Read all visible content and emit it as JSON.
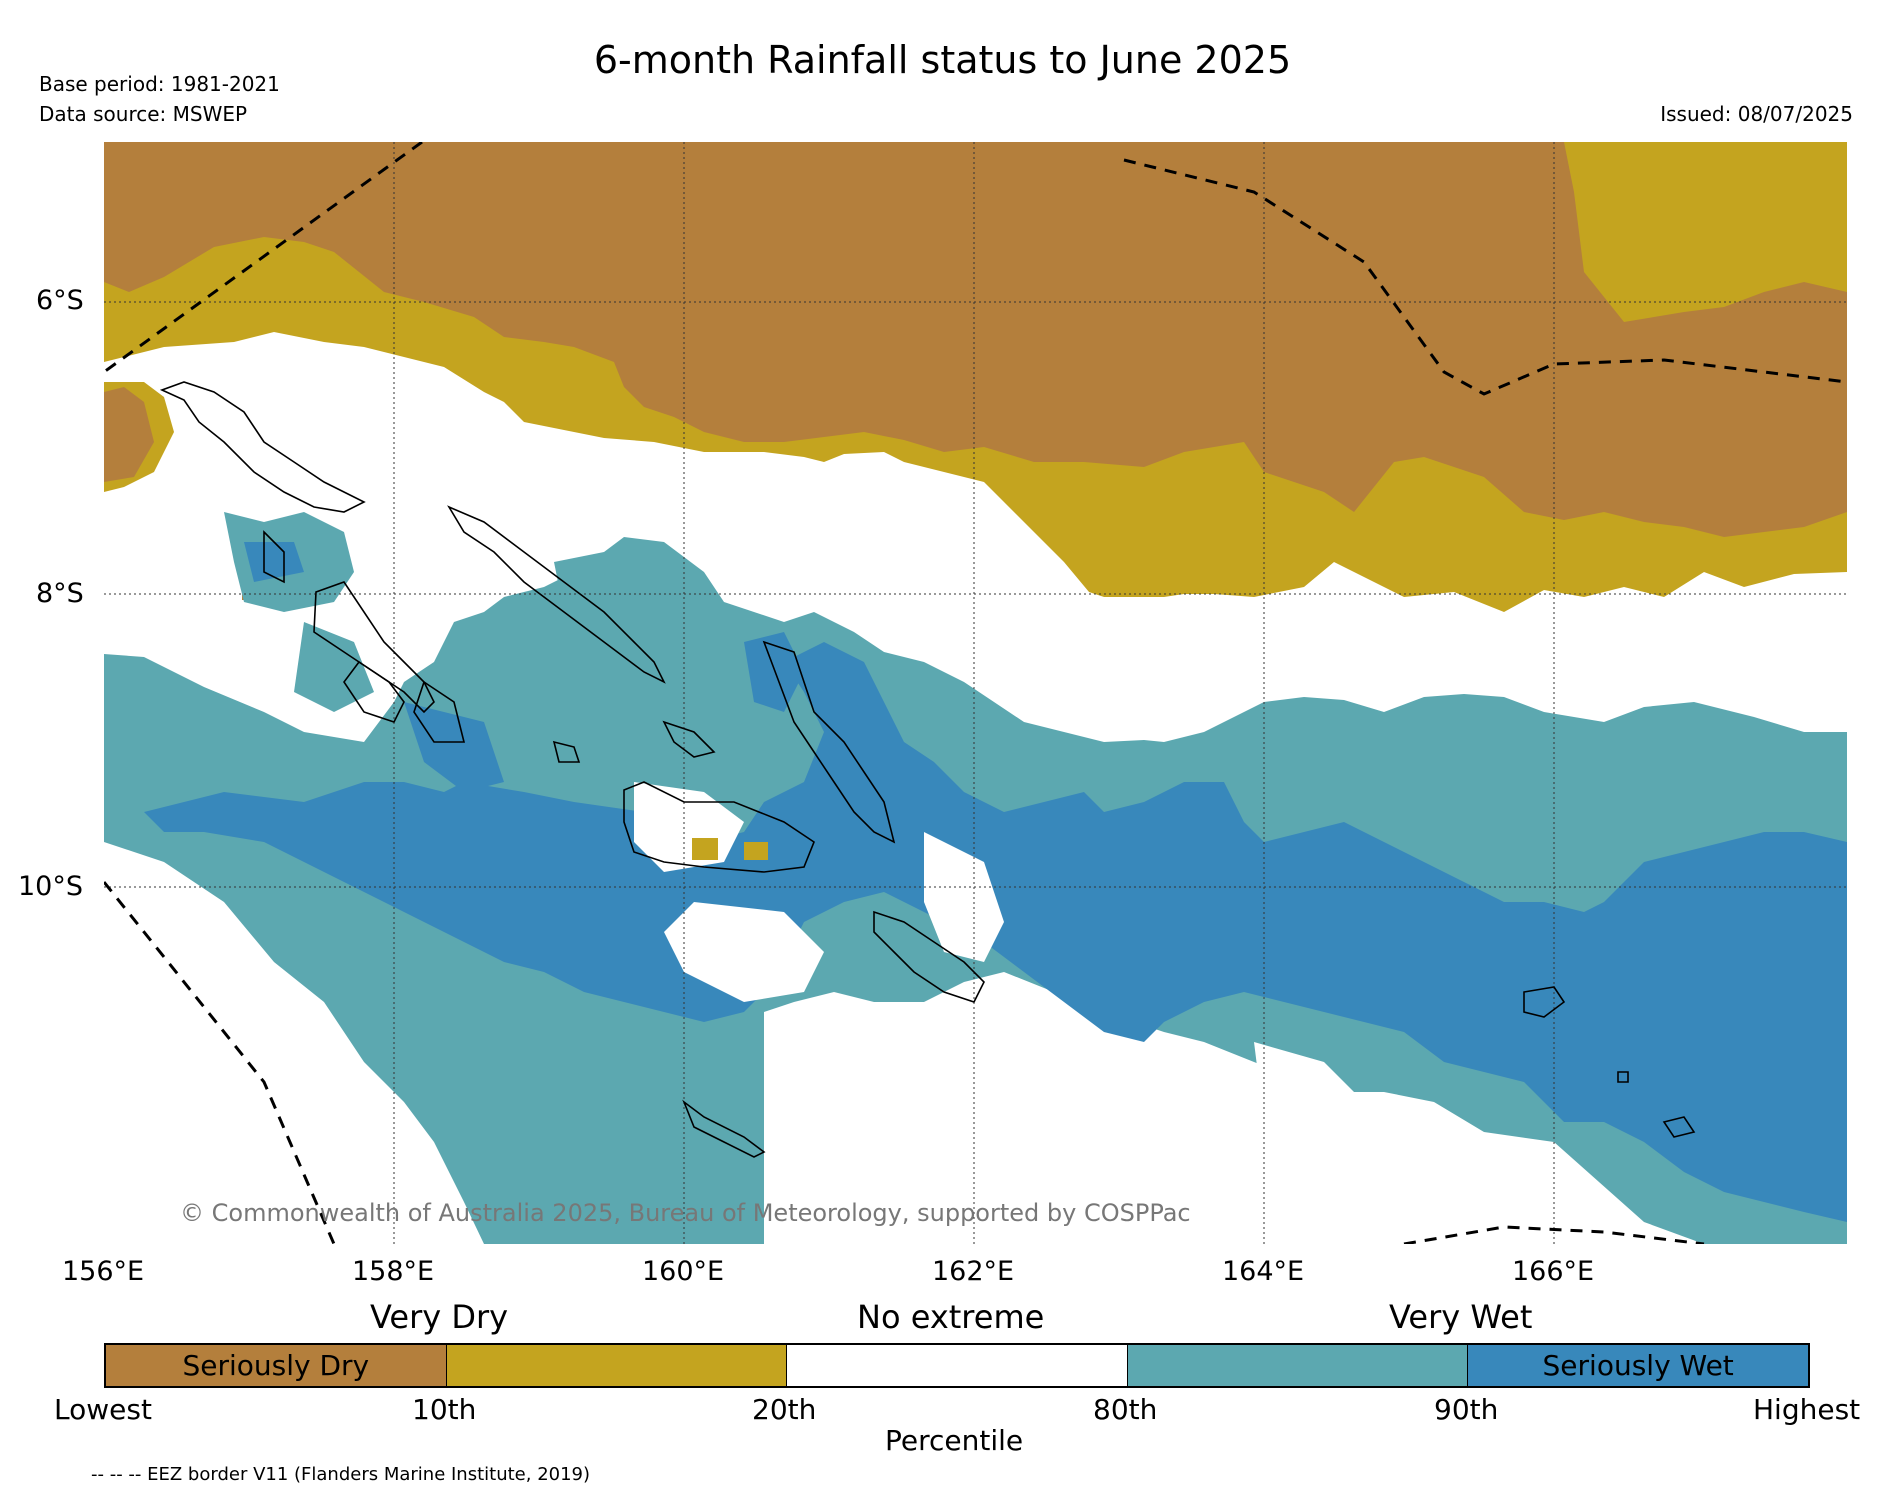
{
  "title": "6-month Rainfall status to June 2025",
  "base_period": "Base period: 1981-2021",
  "data_source": "Data source: MSWEP",
  "issued": "Issued: 08/07/2025",
  "copyright": "© Commonwealth of Australia 2025, Bureau of Meteorology, supported by COSPPac",
  "map": {
    "lat_labels": [
      "6°S",
      "8°S",
      "10°S"
    ],
    "lon_labels": [
      "156°E",
      "158°E",
      "160°E",
      "162°E",
      "164°E",
      "166°E"
    ],
    "colors": {
      "seriously_dry": "#b47f3c",
      "very_dry": "#c4a41f",
      "no_extreme": "#ffffff",
      "very_wet": "#5ca8b0",
      "seriously_wet": "#3888bb"
    }
  },
  "legend": {
    "categories": [
      "Very Dry",
      "No extreme",
      "Very Wet"
    ],
    "segments": [
      {
        "label": "Seriously Dry",
        "color": "#b47f3c"
      },
      {
        "label": "",
        "color": "#c4a41f"
      },
      {
        "label": "",
        "color": "#ffffff"
      },
      {
        "label": "",
        "color": "#5ca8b0"
      },
      {
        "label": "Seriously Wet",
        "color": "#3888bb"
      }
    ],
    "ticks": [
      "Lowest",
      "10th",
      "20th",
      "80th",
      "90th",
      "Highest"
    ],
    "axis_label": "Percentile"
  },
  "eez_note": "-- -- -- EEZ border V11 (Flanders Marine Institute, 2019)"
}
